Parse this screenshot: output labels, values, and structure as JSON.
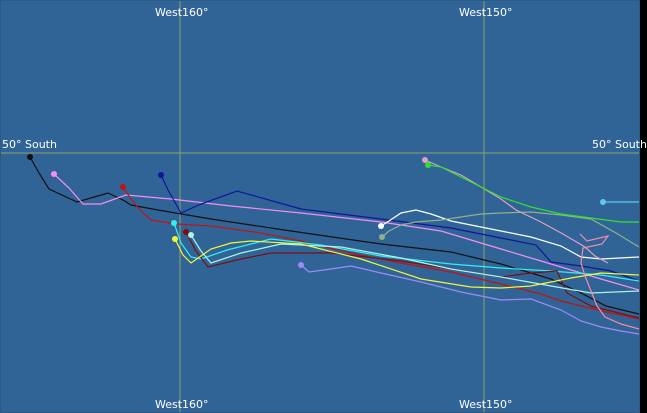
{
  "map": {
    "ocean_color": "#306497",
    "grid_color": "#8fa06a",
    "longitude_labels": {
      "w160_top": "West160°",
      "w150_top": "West150°",
      "w160_bottom": "West160°",
      "w150_bottom": "West150°"
    },
    "latitude_labels": {
      "s50_left": "50° South",
      "s50_right": "50° South"
    }
  },
  "tracks": [
    {
      "color": "#111111"
    },
    {
      "color": "#f28ff0"
    },
    {
      "color": "#c01414"
    },
    {
      "color": "#10169c"
    },
    {
      "color": "#30f0f0"
    },
    {
      "color": "#7a0f0f"
    },
    {
      "color": "#aaf5e5"
    },
    {
      "color": "#f4f43c"
    },
    {
      "color": "#9b8cf5"
    },
    {
      "color": "#ffffff"
    },
    {
      "color": "#8fb08a"
    },
    {
      "color": "#e0a0c0"
    },
    {
      "color": "#30e030"
    },
    {
      "color": "#60c8f5"
    },
    {
      "color": "#f08ca8"
    }
  ]
}
